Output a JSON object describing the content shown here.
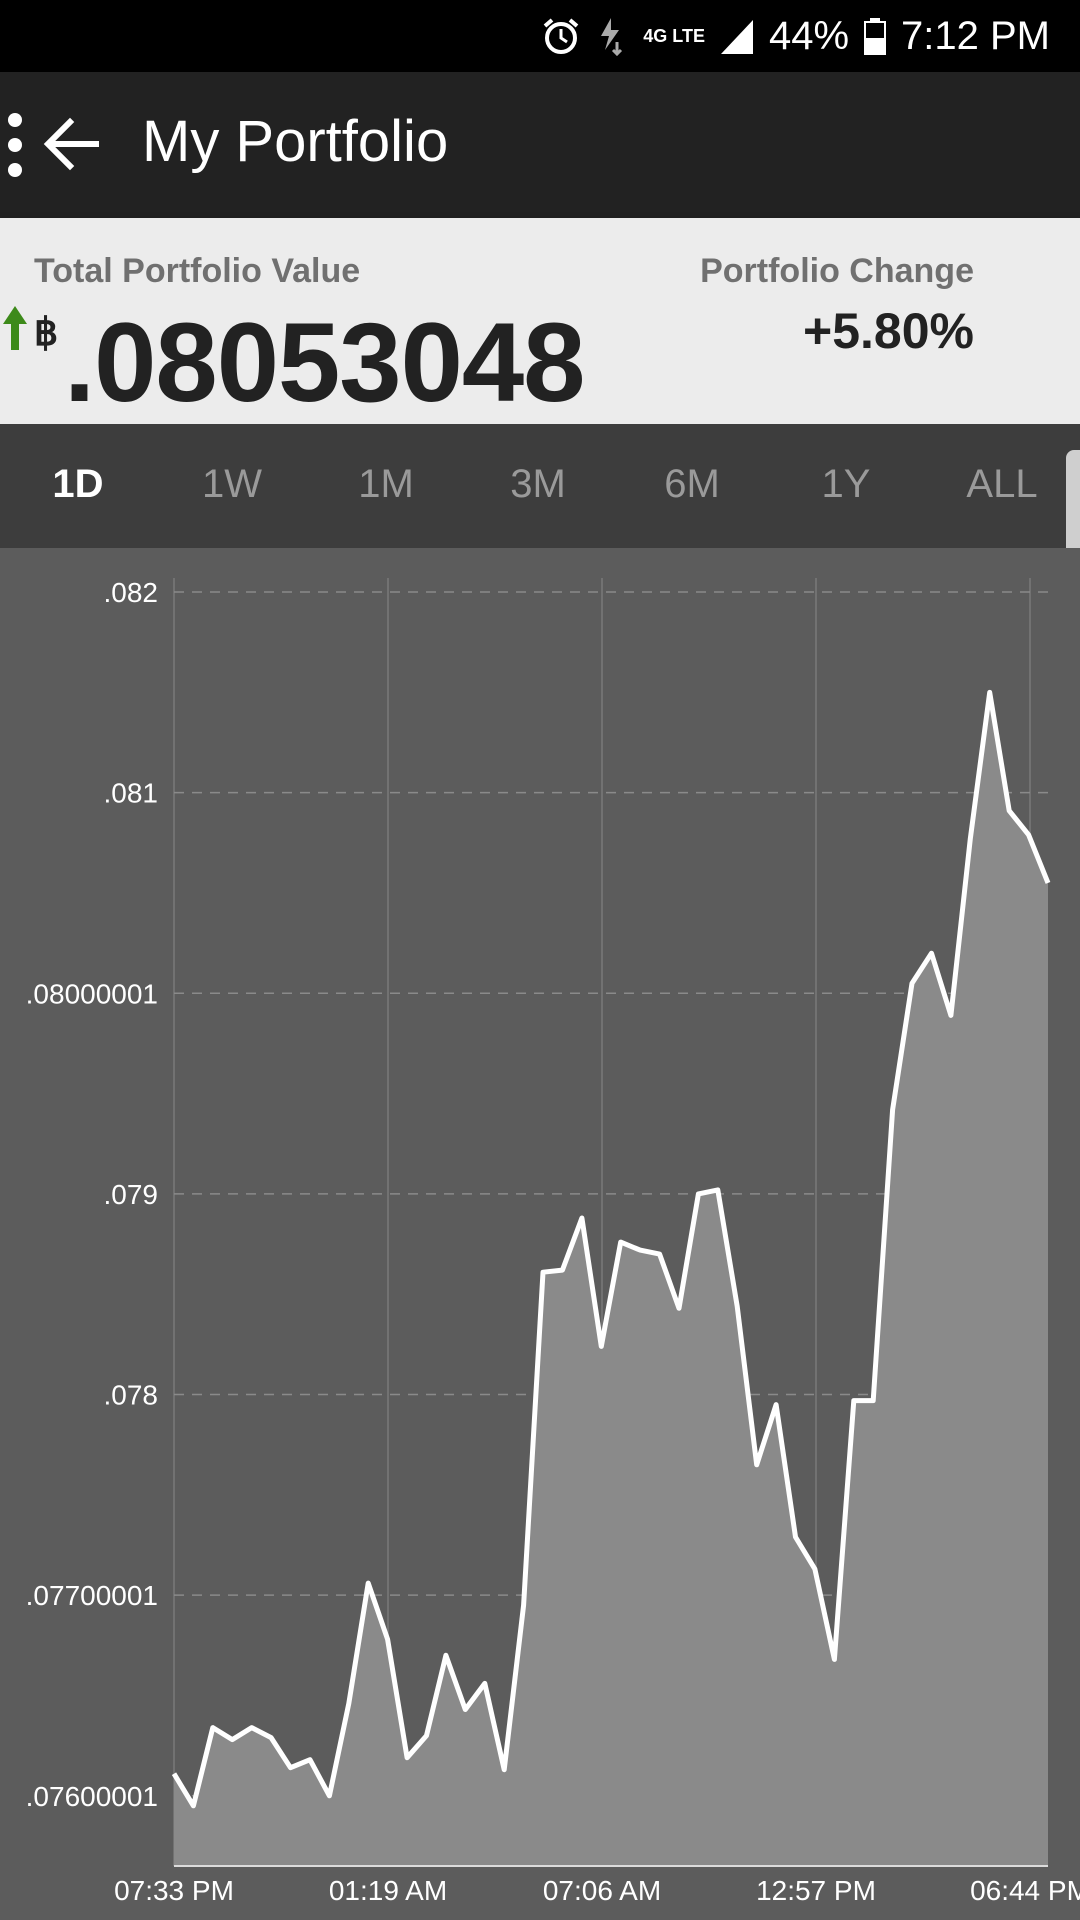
{
  "status_bar": {
    "battery": "44%",
    "time": "7:12 PM",
    "network": "4G LTE",
    "icons": [
      "alarm-icon",
      "charging-icon",
      "network-4g-icon",
      "signal-icon",
      "battery-icon"
    ]
  },
  "app_bar": {
    "title": "My Portfolio",
    "back_icon": "arrow-left-icon",
    "overflow_icon": "more-vert-icon"
  },
  "summary": {
    "total_label": "Total Portfolio Value",
    "currency_symbol": "฿",
    "total_value": ".08053048",
    "change_label": "Portfolio Change",
    "change_value": "+5.80%",
    "change_direction_icon": "arrow-up-icon",
    "change_color": "#3d8a1a"
  },
  "range_tabs": {
    "items": [
      "1D",
      "1W",
      "1M",
      "3M",
      "6M",
      "1Y",
      "ALL"
    ],
    "selected": "1D"
  },
  "chart_data": {
    "type": "area",
    "y_ticks": [
      ".082",
      ".081",
      ".08000001",
      ".079",
      ".078",
      ".07700001",
      ".07600001"
    ],
    "y_tick_values": [
      0.082,
      0.081,
      0.08,
      0.079,
      0.078,
      0.077,
      0.076
    ],
    "x_ticks": [
      "07:33 PM",
      "01:19 AM",
      "07:06 AM",
      "12:57 PM",
      "06:44 PM"
    ],
    "ylim": [
      0.07565,
      0.08207
    ],
    "grid": true,
    "line_color": "#ffffff",
    "fill_color": "#8a8a8a",
    "values": [
      0.07611,
      0.07595,
      0.07634,
      0.07628,
      0.07634,
      0.07629,
      0.07614,
      0.07618,
      0.076,
      0.07646,
      0.07706,
      0.07678,
      0.07619,
      0.0763,
      0.0767,
      0.07643,
      0.07656,
      0.07613,
      0.07695,
      0.07861,
      0.07862,
      0.07888,
      0.07824,
      0.07876,
      0.07872,
      0.0787,
      0.07843,
      0.079,
      0.07902,
      0.07844,
      0.07765,
      0.07795,
      0.07729,
      0.07713,
      0.07668,
      0.07797,
      0.07797,
      0.07942,
      0.08005,
      0.0802,
      0.07989,
      0.08077,
      0.0815,
      0.08091,
      0.08079,
      0.08055
    ]
  }
}
